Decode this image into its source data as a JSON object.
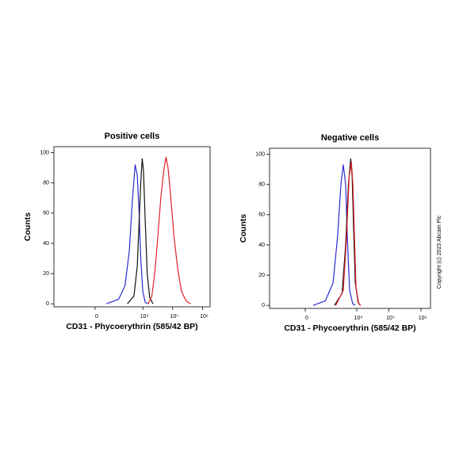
{
  "chart_data": [
    {
      "type": "line",
      "title": "Positive cells",
      "xlabel": "CD31 - Phycoerythrin  (585/42 BP)",
      "ylabel": "Counts",
      "xscale": "biexponential",
      "xlim": [
        -6000,
        1800000
      ],
      "xticks": [
        0,
        {
          "value": 10000,
          "label": "10⁴"
        },
        {
          "value": 100000,
          "label": "10⁵"
        },
        {
          "value": 1000000,
          "label": "10⁶"
        }
      ],
      "ylim": [
        -2,
        104
      ],
      "yticks": [
        0,
        20,
        40,
        60,
        80,
        100
      ],
      "series": [
        {
          "color": "#2b2bd0",
          "x": [
            500,
            1500,
            2500,
            3500,
            4500,
            5500,
            6500,
            7500,
            8500,
            10000,
            12000,
            15000
          ],
          "values": [
            0,
            3,
            12,
            35,
            70,
            92,
            85,
            60,
            30,
            8,
            1,
            0
          ]
        },
        {
          "color": "#111111",
          "x": [
            3000,
            5000,
            6500,
            7500,
            8500,
            9500,
            10500,
            12000,
            14000,
            17000,
            22000
          ],
          "values": [
            0,
            5,
            25,
            55,
            80,
            96,
            88,
            55,
            20,
            4,
            0
          ]
        },
        {
          "color": "#e02028",
          "x": [
            15000,
            20000,
            25000,
            32000,
            40000,
            50000,
            60000,
            70000,
            85000,
            110000,
            150000,
            200000,
            280000,
            400000
          ],
          "values": [
            0,
            5,
            20,
            45,
            70,
            88,
            97,
            90,
            72,
            45,
            22,
            8,
            2,
            0
          ]
        }
      ]
    },
    {
      "type": "line",
      "title": "Negative cells",
      "xlabel": "CD31 - Phycoerythrin  (585/42 BP)",
      "ylabel": "Counts",
      "xscale": "biexponential",
      "xlim": [
        -3200,
        1970000
      ],
      "xticks": [
        0,
        {
          "value": 10000,
          "label": "10⁴"
        },
        {
          "value": 100000,
          "label": "10⁵"
        },
        {
          "value": 1000000,
          "label": "10⁶"
        }
      ],
      "ylim": [
        -2,
        104
      ],
      "yticks": [
        0,
        20,
        40,
        60,
        80,
        100
      ],
      "series": [
        {
          "color": "#2b2bd0",
          "x": [
            300,
            1000,
            1800,
            2500,
            3200,
            3800,
            4500,
            5200,
            6000,
            7500,
            9000
          ],
          "values": [
            0,
            3,
            15,
            45,
            80,
            93,
            80,
            40,
            10,
            1,
            0
          ]
        },
        {
          "color": "#111111",
          "x": [
            2000,
            3500,
            4500,
            5500,
            6500,
            7200,
            8000,
            9000,
            11000,
            13000
          ],
          "values": [
            0,
            8,
            40,
            80,
            97,
            85,
            50,
            15,
            2,
            0
          ]
        },
        {
          "color": "#e02028",
          "x": [
            2200,
            3800,
            4800,
            5800,
            6800,
            7600,
            8500,
            9500,
            11500,
            13500
          ],
          "values": [
            0,
            10,
            45,
            85,
            95,
            80,
            45,
            12,
            1,
            0
          ]
        }
      ]
    }
  ],
  "copyright": "Copyright (c) 2023 Abcam Plc"
}
